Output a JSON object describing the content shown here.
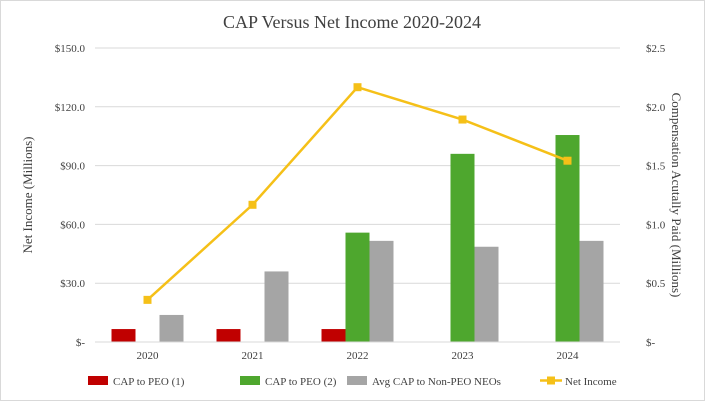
{
  "chart_data": {
    "type": "bar",
    "title": "CAP Versus Net Income 2020-2024",
    "categories": [
      "2020",
      "2021",
      "2022",
      "2023",
      "2024"
    ],
    "y_left": {
      "label": "Net Income (Millions)",
      "ylim": [
        0,
        150
      ],
      "ticks": [
        0,
        30,
        60,
        90,
        120,
        150
      ],
      "tick_labels": [
        "$-",
        "$30.0",
        "$60.0",
        "$90.0",
        "$120.0",
        "$150.0"
      ]
    },
    "y_right": {
      "label": "Compensation Acutally Paid (Millions)",
      "ylim": [
        0,
        2.5
      ],
      "ticks": [
        0,
        0.5,
        1.0,
        1.5,
        2.0,
        2.5
      ],
      "tick_labels": [
        "$-",
        "$0.5",
        "$1.0",
        "$1.5",
        "$2.0",
        "$2.5"
      ]
    },
    "series": [
      {
        "name": "CAP to PEO (1)",
        "type": "bar",
        "axis": "right",
        "color": "#c00000",
        "values": [
          0.11,
          0.11,
          0.11,
          null,
          null
        ]
      },
      {
        "name": "CAP to PEO (2)",
        "type": "bar",
        "axis": "right",
        "color": "#4ea72e",
        "values": [
          null,
          null,
          0.93,
          1.6,
          1.76
        ]
      },
      {
        "name": "Avg CAP to Non-PEO NEOs",
        "type": "bar",
        "axis": "right",
        "color": "#a5a5a5",
        "values": [
          0.23,
          0.6,
          0.86,
          0.81,
          0.86
        ]
      },
      {
        "name": "Net Income",
        "type": "line",
        "axis": "left",
        "color": "#f5c018",
        "values": [
          21.5,
          70,
          130,
          113.5,
          92.5
        ]
      }
    ],
    "grid": true,
    "legend": "bottom"
  }
}
